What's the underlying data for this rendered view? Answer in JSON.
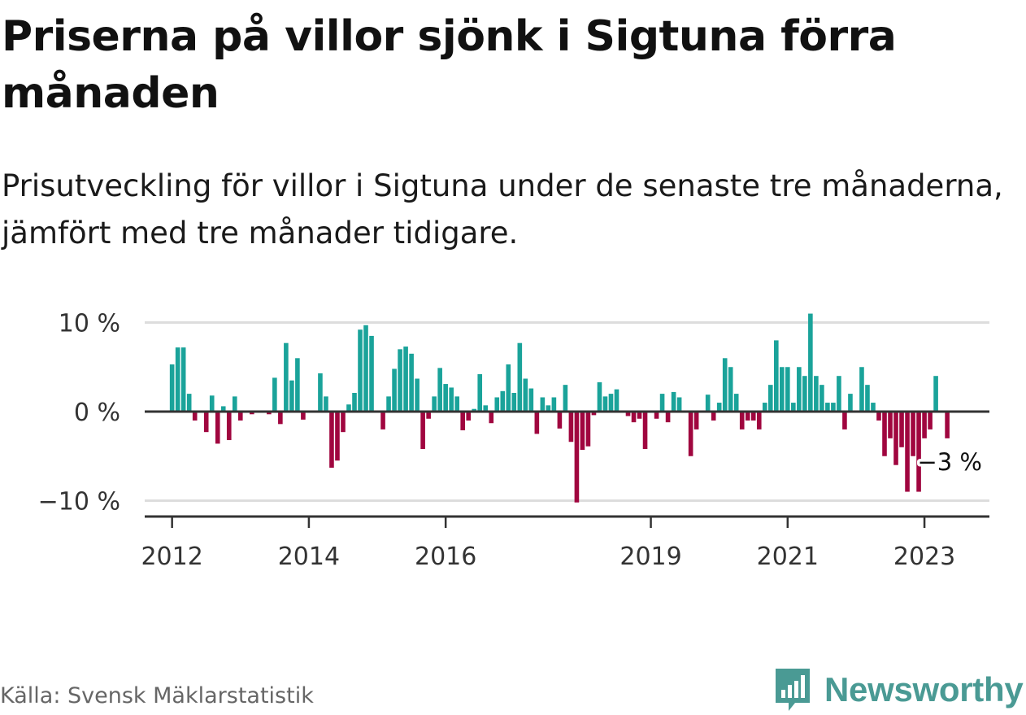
{
  "title": "Priserna på villor sjönk i Sigtuna förra månaden",
  "subtitle": "Prisutveckling för villor i Sigtuna under de senaste tre månaderna, jämfört med tre månader tidigare.",
  "source": "Källa: Svensk Mäklarstatistik",
  "logo": {
    "text": "Newsworthy",
    "icon": "newsworthy-logo-icon"
  },
  "colors": {
    "positive": "#1aa39a",
    "negative": "#a0063f",
    "grid": "#dddddd",
    "axis": "#333333"
  },
  "chart_data": {
    "type": "bar",
    "title": "Priserna på villor sjönk i Sigtuna förra månaden",
    "xlabel": "",
    "ylabel": "",
    "unit": "%",
    "ylim": [
      -12,
      12
    ],
    "y_ticks": [
      {
        "value": 10,
        "label": "10 %"
      },
      {
        "value": 0,
        "label": "0 %"
      },
      {
        "value": -10,
        "label": "−10 %"
      }
    ],
    "x_range": [
      2011.6,
      2023.95
    ],
    "x_ticks": [
      {
        "value": 2012,
        "label": "2012"
      },
      {
        "value": 2014,
        "label": "2014"
      },
      {
        "value": 2016,
        "label": "2016"
      },
      {
        "value": 2019,
        "label": "2019"
      },
      {
        "value": 2021,
        "label": "2021"
      },
      {
        "value": 2023,
        "label": "2023"
      }
    ],
    "start": {
      "year": 2012,
      "month": 1
    },
    "values": [
      5.3,
      7.2,
      7.2,
      2.0,
      -1.0,
      0.0,
      -2.3,
      1.8,
      -3.6,
      0.6,
      -3.2,
      1.7,
      -1.0,
      0.0,
      -0.3,
      0.0,
      0.0,
      -0.3,
      3.8,
      -1.4,
      7.7,
      3.5,
      6.0,
      -0.9,
      0.0,
      0.0,
      4.3,
      1.7,
      -6.3,
      -5.5,
      -2.3,
      0.8,
      2.1,
      9.2,
      9.7,
      8.5,
      0.0,
      -2.0,
      1.7,
      4.8,
      7.0,
      7.3,
      6.5,
      3.7,
      -4.2,
      -0.8,
      1.7,
      4.9,
      3.1,
      2.7,
      1.7,
      -2.1,
      -1.0,
      0.3,
      4.2,
      0.7,
      -1.3,
      1.6,
      2.3,
      5.3,
      2.1,
      7.7,
      3.7,
      2.6,
      -2.5,
      1.6,
      0.7,
      1.6,
      -1.9,
      3.0,
      -3.4,
      -10.2,
      -4.3,
      -3.9,
      -0.4,
      3.3,
      1.7,
      2.0,
      2.5,
      0.0,
      -0.5,
      -1.2,
      -0.8,
      -4.2,
      0.0,
      -0.8,
      2.0,
      -1.2,
      2.2,
      1.6,
      0.0,
      -5.0,
      -2.0,
      0.0,
      1.9,
      -1.0,
      1.0,
      6.0,
      5.0,
      2.0,
      -2.0,
      -1.0,
      -1.0,
      -2.0,
      1.0,
      3.0,
      8.0,
      5.0,
      5.0,
      1.0,
      5.0,
      4.0,
      11.0,
      4.0,
      3.0,
      1.0,
      1.0,
      4.0,
      -2.0,
      2.0,
      0.0,
      5.0,
      3.0,
      1.0,
      -1.0,
      -5.0,
      -3.0,
      -6.0,
      -4.0,
      -9.0,
      -5.0,
      -9.0,
      -3.0,
      -2.0,
      4.0,
      0.0,
      -3.0
    ],
    "annotation": {
      "text": "−3 %",
      "value": -3
    }
  }
}
